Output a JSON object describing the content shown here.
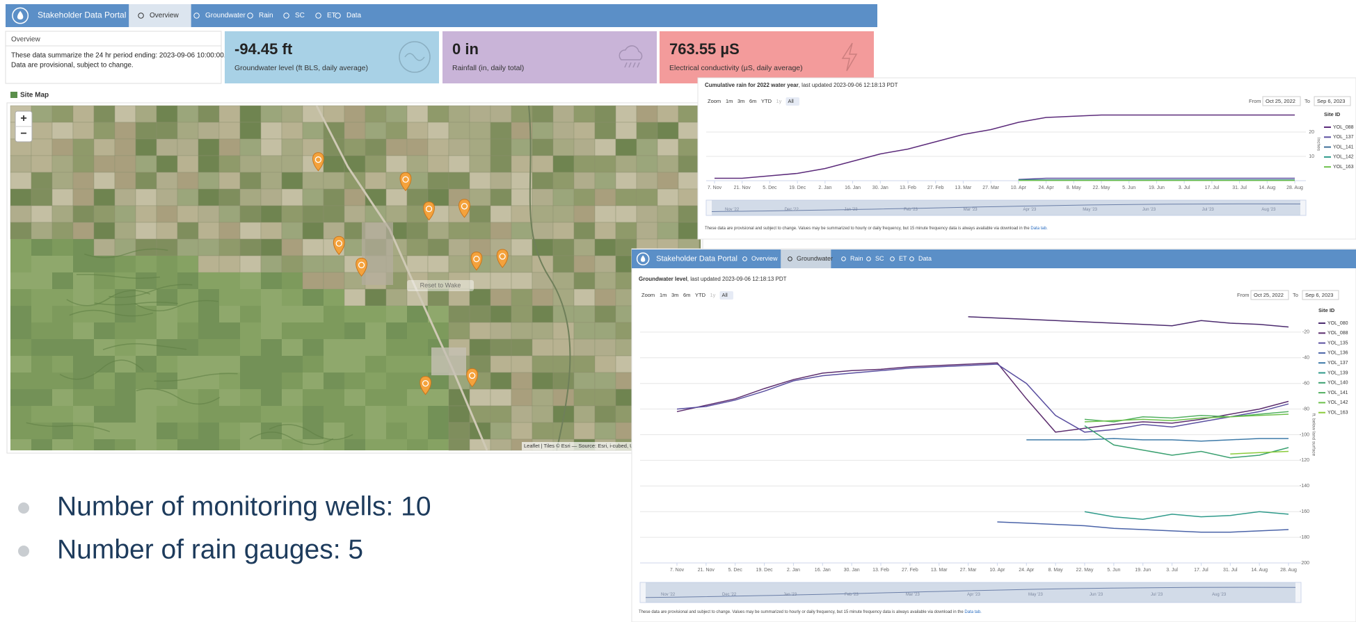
{
  "nav": {
    "title": "Stakeholder Data Portal",
    "tabs": [
      "Overview",
      "Groundwater",
      "Rain",
      "SC",
      "ET",
      "Data"
    ]
  },
  "overview": {
    "heading": "Overview",
    "lines": [
      "These data summarize the 24 hr period ending: 2023-09-06 10:00:00.",
      "Data are provisional, subject to change."
    ]
  },
  "cards": [
    {
      "value": "-94.45 ft",
      "label": "Groundwater level (ft BLS, daily average)",
      "color": "#a8d1e6"
    },
    {
      "value": "0 in",
      "label": "Rainfall (in, daily total)",
      "color": "#c9b4d8"
    },
    {
      "value": "763.55 µS",
      "label": "Electrical conductivity (µS, daily average)",
      "color": "#f39b9b"
    }
  ],
  "site_map": {
    "heading": "Site Map",
    "zoom_in": "+",
    "zoom_out": "−",
    "reset": "Reset to Wake",
    "attribution": "Leaflet | Tiles © Esri — Source: Esri, i-cubed, U"
  },
  "bullets": [
    "Number of monitoring wells: 10",
    "Number of rain gauges: 5"
  ],
  "rain_chart": {
    "type": "line",
    "title_bold": "Cumulative rain for 2022 water year",
    "title_rest": ", last updated 2023-09-06 12:18:13 PDT",
    "zoom": [
      "Zoom",
      "1m",
      "3m",
      "6m",
      "YTD",
      "1y",
      "All"
    ],
    "from_label": "From",
    "from": "Oct 25, 2022",
    "to_label": "To",
    "to": "Sep 6, 2023",
    "y_label": "Inches",
    "legend_title": "Site ID",
    "categories": [
      "7. Nov",
      "21. Nov",
      "5. Dec",
      "19. Dec",
      "2. Jan",
      "16. Jan",
      "30. Jan",
      "13. Feb",
      "27. Feb",
      "13. Mar",
      "27. Mar",
      "10. Apr",
      "24. Apr",
      "8. May",
      "22. May",
      "5. Jun",
      "19. Jun",
      "3. Jul",
      "17. Jul",
      "31. Jul",
      "14. Aug",
      "28. Aug"
    ],
    "ylim": [
      0,
      30
    ],
    "yticks": [
      10,
      20
    ],
    "navigator": [
      "Nov '22",
      "Dec '22",
      "Jan '23",
      "Feb '23",
      "Mar '23",
      "Apr '23",
      "May '23",
      "Jun '23",
      "Jul '23",
      "Aug '23"
    ],
    "footnote": "These data are provisional and subject to change. Values may be summarized to hourly or daily frequency, but 15 minute frequency data is always available via download in the ",
    "footnote_link": "Data tab.",
    "series": [
      {
        "name": "YOL_088",
        "color": "#5b2a7a",
        "values": [
          1,
          1,
          2,
          3,
          5,
          8,
          11,
          13,
          16,
          19,
          21,
          24,
          26,
          26.5,
          27,
          27,
          27,
          27,
          27,
          27,
          27,
          27
        ]
      },
      {
        "name": "YOL_137",
        "color": "#5a4fa0",
        "values": [
          null,
          null,
          null,
          null,
          null,
          null,
          null,
          null,
          null,
          null,
          null,
          0.5,
          1,
          1,
          1,
          1,
          1,
          1,
          1,
          1,
          1,
          1
        ]
      },
      {
        "name": "YOL_141",
        "color": "#3d6f98",
        "values": [
          null,
          null,
          null,
          null,
          null,
          null,
          null,
          null,
          null,
          null,
          null,
          0.3,
          0.3,
          0.3,
          0.3,
          0.3,
          0.3,
          0.3,
          0.3,
          0.3,
          0.3,
          0.3
        ]
      },
      {
        "name": "YOL_142",
        "color": "#2e9a8a",
        "values": [
          null,
          null,
          null,
          null,
          null,
          null,
          null,
          null,
          null,
          null,
          null,
          0.2,
          0.2,
          0.2,
          0.2,
          0.2,
          0.2,
          0.2,
          0.2,
          0.2,
          0.2,
          0.2
        ]
      },
      {
        "name": "YOL_163",
        "color": "#6cc04a",
        "values": [
          null,
          null,
          null,
          null,
          null,
          null,
          null,
          null,
          null,
          null,
          null,
          0.1,
          0.1,
          0.1,
          0.1,
          0.1,
          0.1,
          0.1,
          0.1,
          0.1,
          0.1,
          0.1
        ]
      }
    ]
  },
  "gw_chart": {
    "type": "line",
    "title_bold": "Groundwater level",
    "title_rest": ", last updated 2023-09-06 12:18:13 PDT",
    "zoom": [
      "Zoom",
      "1m",
      "3m",
      "6m",
      "YTD",
      "1y",
      "All"
    ],
    "from_label": "From",
    "from": "Oct 25, 2022",
    "to_label": "To",
    "to": "Sep 6, 2023",
    "y_label": "ft. below land surface",
    "legend_title": "Site ID",
    "categories": [
      "7. Nov",
      "21. Nov",
      "5. Dec",
      "19. Dec",
      "2. Jan",
      "16. Jan",
      "30. Jan",
      "13. Feb",
      "27. Feb",
      "13. Mar",
      "27. Mar",
      "10. Apr",
      "24. Apr",
      "8. May",
      "22. May",
      "5. Jun",
      "19. Jun",
      "3. Jul",
      "17. Jul",
      "31. Jul",
      "14. Aug",
      "28. Aug"
    ],
    "ylim": [
      -200,
      0
    ],
    "yticks": [
      -20,
      -40,
      -60,
      -80,
      -100,
      -120,
      -140,
      -160,
      -180,
      -200
    ],
    "navigator": [
      "Nov '22",
      "Dec '22",
      "Jan '23",
      "Feb '23",
      "Mar '23",
      "Apr '23",
      "May '23",
      "Jun '23",
      "Jul '23",
      "Aug '23"
    ],
    "footnote": "These data are provisional and subject to change. Values may be summarized to hourly or daily frequency, but 15 minute frequency data is always available via download in the ",
    "footnote_link": "Data tab.",
    "series": [
      {
        "name": "YOL_080",
        "color": "#4b2a6e",
        "values": [
          null,
          null,
          null,
          null,
          null,
          null,
          null,
          null,
          null,
          null,
          -8,
          -9,
          -10,
          -11,
          -12,
          -13,
          -14,
          -15,
          -11,
          -13,
          -14,
          -16
        ]
      },
      {
        "name": "YOL_088",
        "color": "#5c2d6e",
        "values": [
          -82,
          -77,
          -72,
          -64,
          -57,
          -52,
          -50,
          -49,
          -47,
          -46,
          -45,
          -44,
          -72,
          -98,
          -95,
          -92,
          -90,
          -91,
          -88,
          -84,
          -80,
          -74
        ]
      },
      {
        "name": "YOL_135",
        "color": "#5a4fa0",
        "values": [
          -80,
          -78,
          -73,
          -66,
          -58,
          -54,
          -52,
          -50,
          -48,
          -47,
          -46,
          -45,
          -60,
          -85,
          -98,
          -96,
          -92,
          -94,
          -90,
          -86,
          -82,
          -76
        ]
      },
      {
        "name": "YOL_136",
        "color": "#4a63a8",
        "values": [
          null,
          null,
          null,
          null,
          null,
          null,
          null,
          null,
          null,
          null,
          null,
          -168,
          -169,
          -170,
          -171,
          -173,
          -174,
          -175,
          -176,
          -176,
          -175,
          -174
        ]
      },
      {
        "name": "YOL_137",
        "color": "#3d7aa8",
        "values": [
          null,
          null,
          null,
          null,
          null,
          null,
          null,
          null,
          null,
          null,
          null,
          null,
          -104,
          -104,
          -104,
          -103,
          -104,
          -104,
          -105,
          -104,
          -103,
          -103
        ]
      },
      {
        "name": "YOL_139",
        "color": "#2e9a8a",
        "values": [
          null,
          null,
          null,
          null,
          null,
          null,
          null,
          null,
          null,
          null,
          null,
          null,
          null,
          null,
          -160,
          -164,
          -166,
          -162,
          -164,
          -163,
          -160,
          -162
        ]
      },
      {
        "name": "YOL_140",
        "color": "#3aa070",
        "values": [
          null,
          null,
          null,
          null,
          null,
          null,
          null,
          null,
          null,
          null,
          null,
          null,
          null,
          null,
          -93,
          -108,
          -112,
          -116,
          -113,
          -118,
          -116,
          -110
        ]
      },
      {
        "name": "YOL_141",
        "color": "#52b060",
        "values": [
          null,
          null,
          null,
          null,
          null,
          null,
          null,
          null,
          null,
          null,
          null,
          null,
          null,
          null,
          -88,
          -90,
          -86,
          -87,
          -85,
          -86,
          -84,
          -82
        ]
      },
      {
        "name": "YOL_142",
        "color": "#6cc04a",
        "values": [
          null,
          null,
          null,
          null,
          null,
          null,
          null,
          null,
          null,
          null,
          null,
          null,
          null,
          null,
          -90,
          -89,
          -88,
          -89,
          -87,
          -86,
          -85,
          -84
        ]
      },
      {
        "name": "YOL_163",
        "color": "#8acb3a",
        "values": [
          null,
          null,
          null,
          null,
          null,
          null,
          null,
          null,
          null,
          null,
          null,
          null,
          null,
          null,
          null,
          null,
          null,
          null,
          null,
          -115,
          -114,
          -113
        ]
      }
    ]
  }
}
